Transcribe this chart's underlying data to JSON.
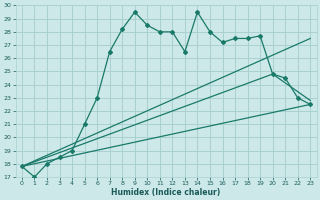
{
  "title": "",
  "xlabel": "Humidex (Indice chaleur)",
  "bg_color": "#cce8e8",
  "grid_color": "#aad0d0",
  "line_color": "#1a7a6a",
  "tick_color": "#1a5a5a",
  "ylim": [
    17,
    30
  ],
  "xlim": [
    -0.5,
    23.5
  ],
  "yticks": [
    17,
    18,
    19,
    20,
    21,
    22,
    23,
    24,
    25,
    26,
    27,
    28,
    29,
    30
  ],
  "xticks": [
    0,
    1,
    2,
    3,
    4,
    5,
    6,
    7,
    8,
    9,
    10,
    11,
    12,
    13,
    14,
    15,
    16,
    17,
    18,
    19,
    20,
    21,
    22,
    23
  ],
  "line1_x": [
    0,
    1,
    2,
    3,
    4,
    5,
    6,
    7,
    8,
    9,
    10,
    11,
    12,
    13,
    14,
    15,
    16,
    17,
    18,
    19,
    20,
    21,
    22,
    23
  ],
  "line1_y": [
    17.8,
    17.0,
    18.0,
    18.5,
    19.0,
    21.0,
    23.0,
    26.5,
    28.2,
    29.5,
    28.5,
    28.0,
    28.0,
    26.5,
    29.5,
    28.0,
    27.2,
    27.5,
    27.5,
    27.7,
    24.8,
    24.5,
    23.0,
    22.5
  ],
  "line2_x": [
    0,
    23
  ],
  "line2_y": [
    17.8,
    22.5
  ],
  "line3_x": [
    0,
    20,
    23
  ],
  "line3_y": [
    17.8,
    24.8,
    22.8
  ],
  "line4_x": [
    0,
    23
  ],
  "line4_y": [
    17.8,
    27.5
  ]
}
